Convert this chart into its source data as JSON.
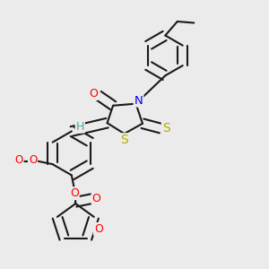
{
  "bg_color": "#ebebeb",
  "bond_color": "#1a1a1a",
  "bond_width": 1.5,
  "dbo": 0.018,
  "figsize": [
    3.0,
    3.0
  ],
  "dpi": 100,
  "colors": {
    "O": "#ff0000",
    "N": "#0000ee",
    "S": "#bbaa00",
    "H": "#44aaaa",
    "C": "#1a1a1a"
  }
}
